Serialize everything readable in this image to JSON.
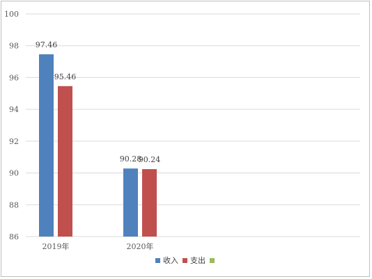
{
  "chart_data": {
    "type": "bar",
    "categories": [
      "2019年",
      "2020年"
    ],
    "series": [
      {
        "name": "收入",
        "values": [
          97.46,
          90.28
        ],
        "color": "#4f81bd"
      },
      {
        "name": "支出",
        "values": [
          95.46,
          90.24
        ],
        "color": "#c0504d"
      },
      {
        "name": "",
        "values": [
          null,
          null
        ],
        "color": "#9bbb59"
      }
    ],
    "ylim": [
      86,
      100
    ],
    "yticks": [
      86,
      88,
      90,
      92,
      94,
      96,
      98,
      100
    ],
    "grid": true,
    "legend_position": "bottom",
    "data_labels": [
      [
        "97.46",
        "90.28"
      ],
      [
        "95.46",
        "90.24"
      ]
    ]
  }
}
